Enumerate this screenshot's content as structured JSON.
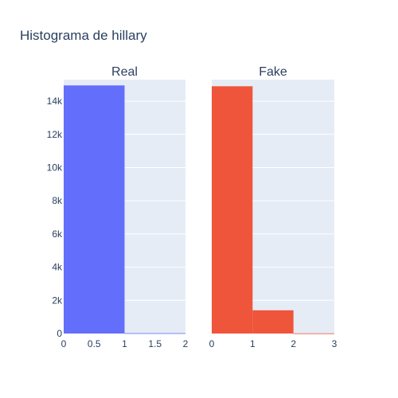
{
  "title": "Histograma de hillary",
  "colors": {
    "plot_bg": "#e5ecf6",
    "grid": "#ffffff",
    "text": "#2a3f5f",
    "real_bar": "#636efa",
    "fake_bar": "#ef553b"
  },
  "chart_data": [
    {
      "type": "bar",
      "subplot_title": "Real",
      "bins": [
        {
          "start": 0,
          "end": 1,
          "count": 14950
        },
        {
          "start": 1,
          "end": 2,
          "count": 20
        }
      ],
      "xlim": [
        0,
        2
      ],
      "x_ticks": [
        0,
        0.5,
        1,
        1.5,
        2
      ],
      "x_tick_labels": [
        "0",
        "0.5",
        "1",
        "1.5",
        "2"
      ],
      "ylim": [
        0,
        15300
      ],
      "y_ticks": [
        0,
        2000,
        4000,
        6000,
        8000,
        10000,
        12000,
        14000
      ],
      "y_tick_labels": [
        "0",
        "2k",
        "4k",
        "6k",
        "8k",
        "10k",
        "12k",
        "14k"
      ],
      "grid": true,
      "color": "#636efa"
    },
    {
      "type": "bar",
      "subplot_title": "Fake",
      "bins": [
        {
          "start": 0,
          "end": 1,
          "count": 14900
        },
        {
          "start": 1,
          "end": 2,
          "count": 1400
        },
        {
          "start": 2,
          "end": 3,
          "count": 10
        }
      ],
      "xlim": [
        0,
        3
      ],
      "x_ticks": [
        0,
        1,
        2,
        3
      ],
      "x_tick_labels": [
        "0",
        "1",
        "2",
        "3"
      ],
      "ylim": [
        0,
        15300
      ],
      "y_ticks": [
        0,
        2000,
        4000,
        6000,
        8000,
        10000,
        12000,
        14000
      ],
      "grid": true,
      "color": "#ef553b"
    }
  ]
}
